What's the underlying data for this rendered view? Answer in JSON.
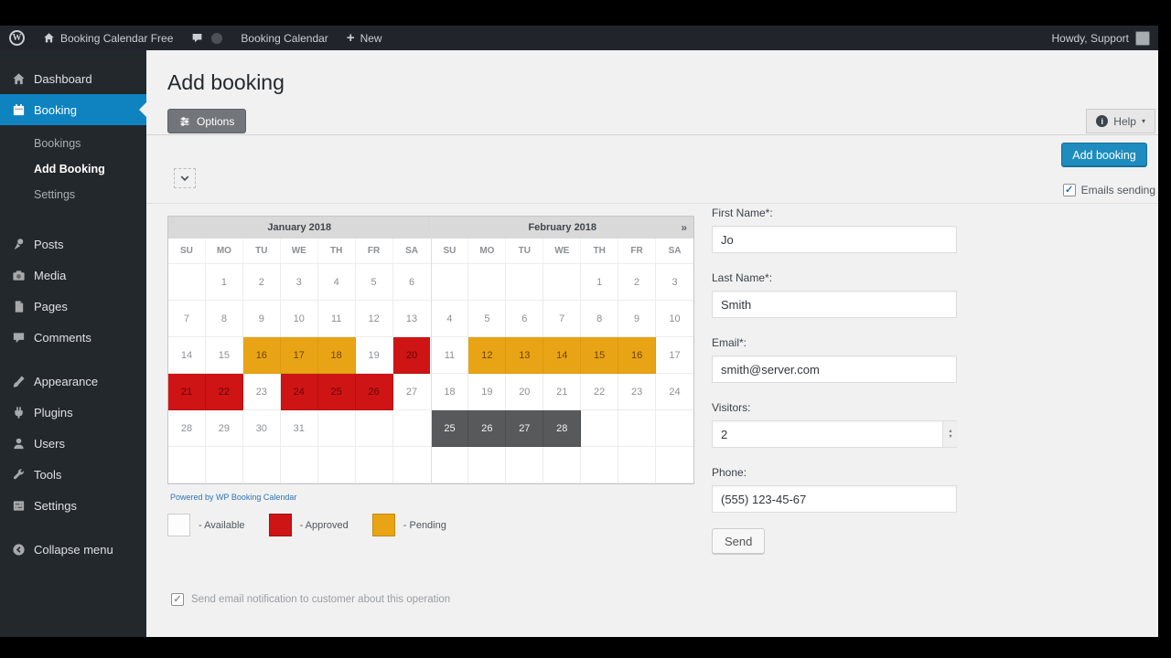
{
  "admin_bar": {
    "site_name": "Booking Calendar Free",
    "plugin_name": "Booking Calendar",
    "new_label": "New",
    "howdy": "Howdy, Support"
  },
  "sidebar": {
    "items": [
      {
        "name": "dashboard",
        "icon": "home-icon",
        "label": "Dashboard"
      },
      {
        "name": "booking",
        "icon": "calendar-icon",
        "label": "Booking",
        "active": true,
        "submenu": [
          {
            "name": "bookings",
            "label": "Bookings"
          },
          {
            "name": "add-booking",
            "label": "Add Booking",
            "current": true
          },
          {
            "name": "settings",
            "label": "Settings"
          }
        ]
      },
      {
        "name": "posts",
        "icon": "pushpin-icon",
        "label": "Posts",
        "gap": true
      },
      {
        "name": "media",
        "icon": "camera-icon",
        "label": "Media"
      },
      {
        "name": "pages",
        "icon": "pages-icon",
        "label": "Pages"
      },
      {
        "name": "comments",
        "icon": "comments-icon",
        "label": "Comments"
      },
      {
        "name": "appearance",
        "icon": "brush-icon",
        "label": "Appearance",
        "gap": true
      },
      {
        "name": "plugins",
        "icon": "plugin-icon",
        "label": "Plugins"
      },
      {
        "name": "users",
        "icon": "user-icon",
        "label": "Users"
      },
      {
        "name": "tools",
        "icon": "wrench-icon",
        "label": "Tools"
      },
      {
        "name": "settings",
        "icon": "settings-icon",
        "label": "Settings"
      },
      {
        "name": "collapse-menu",
        "icon": "collapse-icon",
        "label": "Collapse menu",
        "gap": true
      }
    ]
  },
  "page": {
    "title": "Add booking",
    "options_label": "Options",
    "help_label": "Help",
    "add_booking_label": "Add booking",
    "emails_sending_label": "Emails sending",
    "send_notification_label": "Send email notification to customer about this operation"
  },
  "calendar": {
    "weekdays": [
      "SU",
      "MO",
      "TU",
      "WE",
      "TH",
      "FR",
      "SA"
    ],
    "next_nav": "»",
    "months": [
      {
        "title": "January 2018",
        "first_weekday": 1,
        "num_days": 31,
        "pending": [
          16,
          17,
          18
        ],
        "approved": [
          20,
          21,
          22,
          24,
          25,
          26
        ],
        "selected": []
      },
      {
        "title": "February 2018",
        "first_weekday": 4,
        "num_days": 28,
        "pending": [
          12,
          13,
          14,
          15,
          16
        ],
        "approved": [],
        "selected": [
          25,
          26,
          27,
          28
        ]
      }
    ],
    "powered_by": "Powered by WP Booking Calendar",
    "legend": [
      {
        "key": "available",
        "label": "- Available"
      },
      {
        "key": "approved",
        "label": "- Approved"
      },
      {
        "key": "pending",
        "label": "- Pending"
      }
    ]
  },
  "form": {
    "fields": [
      {
        "name": "first-name",
        "label": "First Name*:",
        "value": "Jo",
        "type": "text"
      },
      {
        "name": "last-name",
        "label": "Last Name*:",
        "value": "Smith",
        "type": "text"
      },
      {
        "name": "email",
        "label": "Email*:",
        "value": "smith@server.com",
        "type": "text"
      },
      {
        "name": "visitors",
        "label": "Visitors:",
        "value": "2",
        "type": "select"
      },
      {
        "name": "phone",
        "label": "Phone:",
        "value": "(555) 123-45-67",
        "type": "text"
      }
    ],
    "send_label": "Send"
  },
  "colors": {
    "approved": "#ce1414",
    "pending": "#e8a414",
    "selected_day": "#58595b",
    "menu_active": "#0e83c0",
    "primary_button": "#1e8cbe"
  }
}
